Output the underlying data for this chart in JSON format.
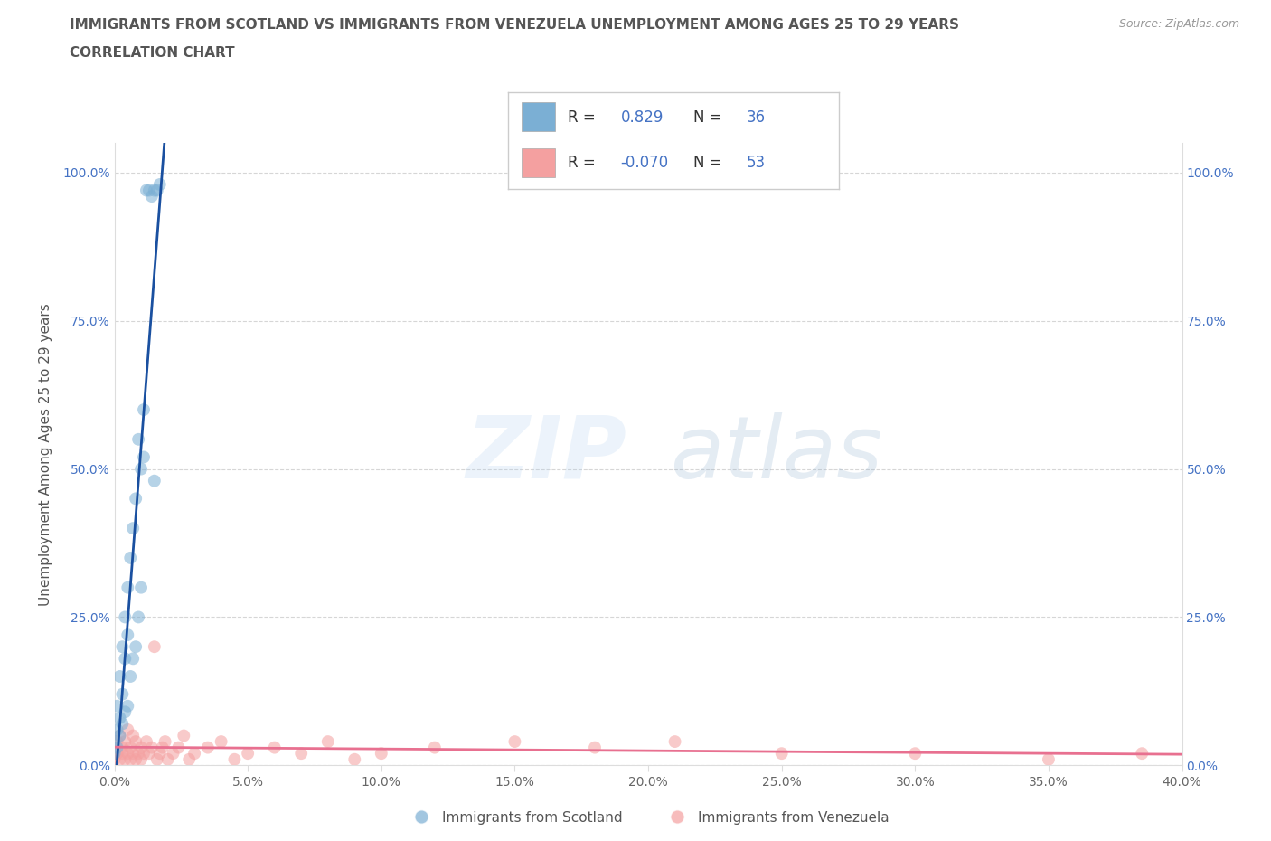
{
  "title_line1": "IMMIGRANTS FROM SCOTLAND VS IMMIGRANTS FROM VENEZUELA UNEMPLOYMENT AMONG AGES 25 TO 29 YEARS",
  "title_line2": "CORRELATION CHART",
  "source": "Source: ZipAtlas.com",
  "ylabel": "Unemployment Among Ages 25 to 29 years",
  "xlim": [
    0.0,
    0.4
  ],
  "ylim": [
    0.0,
    1.05
  ],
  "xticks": [
    0.0,
    0.05,
    0.1,
    0.15,
    0.2,
    0.25,
    0.3,
    0.35,
    0.4
  ],
  "ytick_positions": [
    0.0,
    0.25,
    0.5,
    0.75,
    1.0
  ],
  "ytick_labels": [
    "0.0%",
    "25.0%",
    "50.0%",
    "75.0%",
    "100.0%"
  ],
  "xtick_labels": [
    "0.0%",
    "5.0%",
    "10.0%",
    "15.0%",
    "20.0%",
    "25.0%",
    "30.0%",
    "35.0%",
    "40.0%"
  ],
  "scotland_R": 0.829,
  "scotland_N": 36,
  "venezuela_R": -0.07,
  "venezuela_N": 53,
  "scotland_color": "#7BAFD4",
  "venezuela_color": "#F4A0A0",
  "scotland_line_color": "#1A50A0",
  "venezuela_line_color": "#E87090",
  "legend_label_scotland": "Immigrants from Scotland",
  "legend_label_venezuela": "Immigrants from Venezuela",
  "scotland_x": [
    0.0,
    0.0,
    0.001,
    0.001,
    0.001,
    0.002,
    0.002,
    0.002,
    0.003,
    0.003,
    0.003,
    0.004,
    0.004,
    0.004,
    0.005,
    0.005,
    0.005,
    0.006,
    0.006,
    0.007,
    0.007,
    0.008,
    0.008,
    0.009,
    0.009,
    0.01,
    0.01,
    0.011,
    0.011,
    0.012,
    0.013,
    0.014,
    0.015,
    0.015,
    0.016,
    0.017
  ],
  "scotland_y": [
    0.02,
    0.04,
    0.03,
    0.06,
    0.1,
    0.05,
    0.08,
    0.15,
    0.07,
    0.12,
    0.2,
    0.09,
    0.18,
    0.25,
    0.1,
    0.22,
    0.3,
    0.15,
    0.35,
    0.18,
    0.4,
    0.2,
    0.45,
    0.25,
    0.55,
    0.3,
    0.5,
    0.52,
    0.6,
    0.97,
    0.97,
    0.96,
    0.97,
    0.48,
    0.97,
    0.98
  ],
  "venezuela_x": [
    0.0,
    0.0,
    0.001,
    0.001,
    0.002,
    0.002,
    0.003,
    0.003,
    0.004,
    0.004,
    0.005,
    0.005,
    0.006,
    0.006,
    0.007,
    0.007,
    0.008,
    0.008,
    0.009,
    0.01,
    0.01,
    0.011,
    0.012,
    0.013,
    0.014,
    0.015,
    0.016,
    0.017,
    0.018,
    0.019,
    0.02,
    0.022,
    0.024,
    0.026,
    0.028,
    0.03,
    0.035,
    0.04,
    0.045,
    0.05,
    0.06,
    0.07,
    0.08,
    0.09,
    0.1,
    0.12,
    0.15,
    0.18,
    0.21,
    0.25,
    0.3,
    0.35,
    0.385
  ],
  "venezuela_y": [
    0.01,
    0.03,
    0.02,
    0.04,
    0.01,
    0.05,
    0.02,
    0.03,
    0.01,
    0.04,
    0.02,
    0.06,
    0.01,
    0.03,
    0.02,
    0.05,
    0.01,
    0.04,
    0.02,
    0.03,
    0.01,
    0.02,
    0.04,
    0.02,
    0.03,
    0.2,
    0.01,
    0.02,
    0.03,
    0.04,
    0.01,
    0.02,
    0.03,
    0.05,
    0.01,
    0.02,
    0.03,
    0.04,
    0.01,
    0.02,
    0.03,
    0.02,
    0.04,
    0.01,
    0.02,
    0.03,
    0.04,
    0.03,
    0.04,
    0.02,
    0.02,
    0.01,
    0.02
  ]
}
